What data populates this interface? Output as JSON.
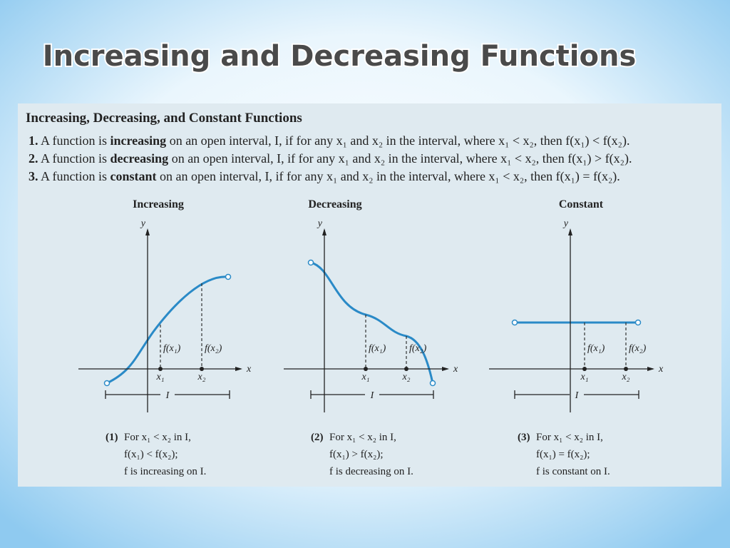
{
  "title": "Increasing and Decreasing Functions",
  "box": {
    "heading": "Increasing, Decreasing, and Constant Functions",
    "definitions": [
      {
        "number": "1.",
        "before": "A function is",
        "term": "increasing",
        "after": "on an open interval, I, if for any x₁ and x₂ in the interval, where x₁ < x₂, then f(x₁) < f(x₂)."
      },
      {
        "number": "2.",
        "before": "A function is",
        "term": "decreasing",
        "after": "on an open interval, I, if for any x₁ and x₂ in the interval, where x₁ < x₂, then f(x₁) > f(x₂)."
      },
      {
        "number": "3.",
        "before": "A function is",
        "term": "constant",
        "after": "on an open interval, I, if for any x₁ and x₂ in the interval, where x₁ < x₂, then f(x₁) = f(x₂)."
      }
    ]
  },
  "graphs": [
    {
      "title": "Increasing",
      "y_label": "y",
      "x_label": "x",
      "f1": "f(x₁)",
      "f2": "f(x₂)",
      "x1": "x₁",
      "x2": "x₂",
      "interval": "I",
      "number": "(1)",
      "caption": [
        "For x₁ < x₂ in I,",
        "f(x₁) < f(x₂);",
        "f is increasing on I."
      ]
    },
    {
      "title": "Decreasing",
      "y_label": "y",
      "x_label": "x",
      "f1": "f(x₁)",
      "f2": "f(x₂)",
      "x1": "x₁",
      "x2": "x₂",
      "interval": "I",
      "number": "(2)",
      "caption": [
        "For x₁ < x₂ in I,",
        "f(x₁) > f(x₂);",
        "f is decreasing on I."
      ]
    },
    {
      "title": "Constant",
      "y_label": "y",
      "x_label": "x",
      "f1": "f(x₁)",
      "f2": "f(x₂)",
      "x1": "x₁",
      "x2": "x₂",
      "interval": "I",
      "number": "(3)",
      "caption": [
        "For x₁ < x₂ in I,",
        "f(x₁) = f(x₂);",
        "f is constant on I."
      ]
    }
  ]
}
